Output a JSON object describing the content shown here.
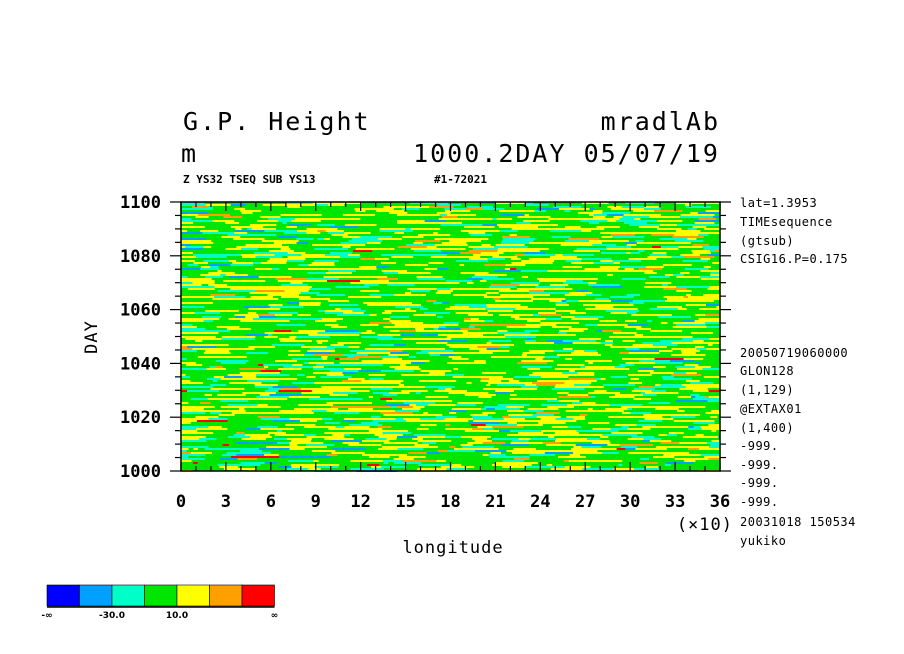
{
  "header": {
    "title_left": "G.P. Height",
    "title_right": "mradlAb",
    "unit": "m",
    "subtitle_right": "1000.2DAY 05/07/19",
    "small_left": "Z YS32 TSEQ SUB YS13",
    "small_right": "#1-72021"
  },
  "side_info": [
    "lat=1.3953",
    "TIMEsequence",
    "(gtsub)",
    "CSIG16.P=0.175",
    "20050719060000",
    "GLON128",
    "(1,129)",
    "@EXTAX01",
    "(1,400)",
    "-999.",
    "-999.",
    "-999.",
    "-999.",
    "20031018 150534",
    "yukiko"
  ],
  "chart_data": {
    "type": "heatmap",
    "xlabel": "longitude",
    "ylabel": "DAY",
    "x_multiplier": "(×10)",
    "xlim": [
      0,
      36
    ],
    "ylim": [
      1000,
      1100
    ],
    "x_ticks": [
      "0",
      "3",
      "6",
      "9",
      "12",
      "15",
      "18",
      "21",
      "24",
      "27",
      "30",
      "33",
      "36"
    ],
    "y_ticks": [
      "1000",
      "1020",
      "1040",
      "1060",
      "1080",
      "1100"
    ],
    "colorbar": {
      "colors": [
        "#0000ff",
        "#00a0ff",
        "#00ffc8",
        "#00e600",
        "#ffff00",
        "#ffa000",
        "#ff0000"
      ],
      "labels": [
        "-∞",
        "-30.0",
        "10.0",
        "∞"
      ]
    }
  }
}
